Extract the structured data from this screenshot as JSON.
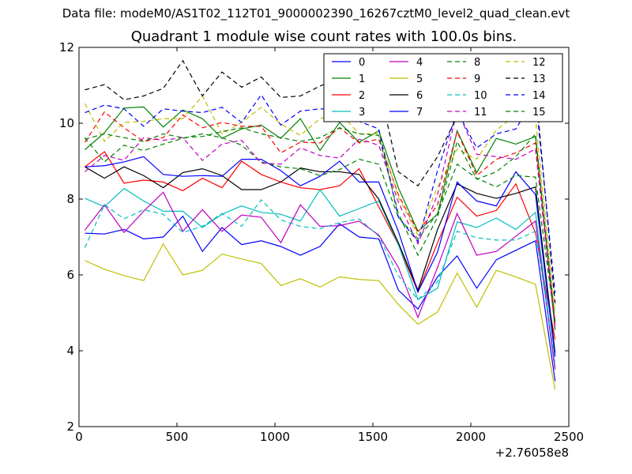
{
  "suptitle": "Data file: modeM0/AS1T02_112T01_9000002390_16267cztM0_level2_quad_clean.evt",
  "chart_data": {
    "type": "line",
    "title": "Quadrant 1 module wise count rates with 100.0s bins.",
    "xlabel": "",
    "ylabel": "",
    "x_offset_label": "+2.76058e8",
    "xlim": [
      0,
      2500
    ],
    "ylim": [
      2,
      12
    ],
    "xticks": [
      0,
      500,
      1000,
      1500,
      2000,
      2500
    ],
    "yticks": [
      2,
      4,
      6,
      8,
      10,
      12
    ],
    "grid": false,
    "legend_position": "upper-right",
    "legend_columns": 4,
    "x": [
      30,
      130,
      230,
      330,
      430,
      530,
      630,
      730,
      830,
      930,
      1030,
      1130,
      1230,
      1330,
      1430,
      1530,
      1630,
      1730,
      1830,
      1930,
      2030,
      2130,
      2230,
      2330,
      2430
    ],
    "series": [
      {
        "name": "0",
        "color": "#0000ff",
        "dash": "solid",
        "values": [
          7.1,
          7.08,
          7.2,
          6.95,
          7.0,
          7.55,
          6.62,
          7.25,
          6.8,
          6.9,
          6.75,
          6.52,
          6.75,
          7.35,
          7.0,
          6.95,
          5.6,
          5.1,
          5.95,
          6.5,
          5.65,
          6.4,
          6.65,
          6.9,
          3.2
        ]
      },
      {
        "name": "1",
        "color": "#008000",
        "dash": "solid",
        "values": [
          9.3,
          9.75,
          10.4,
          10.43,
          9.9,
          10.35,
          10.12,
          9.6,
          9.85,
          9.95,
          9.6,
          10.12,
          9.28,
          10.02,
          9.5,
          9.8,
          8.3,
          7.15,
          7.6,
          9.8,
          8.7,
          9.6,
          9.45,
          9.65,
          4.55
        ]
      },
      {
        "name": "2",
        "color": "#ff0000",
        "dash": "solid",
        "values": [
          8.85,
          9.25,
          8.42,
          8.5,
          8.45,
          8.22,
          8.55,
          8.3,
          9.0,
          8.65,
          8.45,
          8.3,
          8.25,
          8.35,
          8.8,
          7.8,
          6.8,
          5.55,
          6.85,
          8.05,
          7.55,
          7.7,
          8.4,
          7.1,
          4.3
        ]
      },
      {
        "name": "3",
        "color": "#00bfbf",
        "dash": "solid",
        "values": [
          8.02,
          7.8,
          8.28,
          7.95,
          7.68,
          7.68,
          7.25,
          7.6,
          7.82,
          7.65,
          7.6,
          7.42,
          8.25,
          7.55,
          7.75,
          7.95,
          6.8,
          5.35,
          5.65,
          7.4,
          7.25,
          7.5,
          7.2,
          7.65,
          3.55
        ]
      },
      {
        "name": "4",
        "color": "#bf00bf",
        "dash": "solid",
        "values": [
          7.18,
          7.85,
          7.12,
          7.68,
          8.18,
          7.15,
          7.72,
          7.15,
          7.58,
          7.52,
          6.85,
          7.85,
          7.28,
          7.3,
          7.42,
          7.05,
          6.2,
          4.88,
          6.2,
          7.62,
          6.52,
          6.62,
          7.02,
          7.42,
          3.5
        ]
      },
      {
        "name": "5",
        "color": "#bfbf00",
        "dash": "solid",
        "values": [
          6.38,
          6.15,
          5.98,
          5.85,
          6.82,
          6.0,
          6.12,
          6.55,
          6.42,
          6.3,
          5.72,
          5.9,
          5.68,
          5.95,
          5.88,
          5.85,
          5.22,
          4.7,
          5.02,
          6.05,
          5.15,
          6.12,
          5.95,
          5.75,
          2.98
        ]
      },
      {
        "name": "6",
        "color": "#000000",
        "dash": "solid",
        "values": [
          8.85,
          8.55,
          8.85,
          8.62,
          8.3,
          8.7,
          8.8,
          8.62,
          8.25,
          8.25,
          8.45,
          8.82,
          8.72,
          8.72,
          8.65,
          8.0,
          6.85,
          5.6,
          7.2,
          8.4,
          8.15,
          8.02,
          8.15,
          8.32,
          3.95
        ]
      },
      {
        "name": "7",
        "color": "#0000ff",
        "dash": "solid",
        "values": [
          8.85,
          8.88,
          8.98,
          9.12,
          8.65,
          8.6,
          8.62,
          8.6,
          9.05,
          9.05,
          8.75,
          8.35,
          8.6,
          9.0,
          8.45,
          8.45,
          7.15,
          5.55,
          6.6,
          8.45,
          7.95,
          7.82,
          8.72,
          8.12,
          3.85
        ]
      },
      {
        "name": "8",
        "color": "#008000",
        "dash": "dash",
        "values": [
          9.62,
          8.98,
          9.42,
          9.28,
          9.45,
          9.6,
          9.72,
          9.62,
          9.42,
          8.98,
          8.85,
          8.8,
          8.62,
          8.78,
          9.05,
          8.92,
          7.52,
          6.95,
          7.62,
          8.92,
          8.55,
          8.32,
          8.62,
          8.58,
          4.72
        ]
      },
      {
        "name": "9",
        "color": "#ff0000",
        "dash": "dash",
        "values": [
          9.5,
          10.3,
          9.88,
          9.52,
          9.62,
          10.22,
          9.88,
          10.02,
          9.92,
          9.92,
          9.22,
          9.5,
          9.48,
          9.88,
          9.48,
          9.58,
          8.12,
          7.12,
          7.85,
          9.78,
          8.62,
          9.05,
          9.22,
          9.48,
          4.72
        ]
      },
      {
        "name": "10",
        "color": "#00bfbf",
        "dash": "dash",
        "values": [
          6.72,
          7.85,
          7.48,
          7.72,
          7.6,
          7.12,
          7.28,
          7.62,
          7.28,
          7.98,
          7.45,
          7.28,
          7.22,
          7.38,
          7.48,
          7.02,
          5.98,
          5.35,
          5.82,
          7.15,
          6.98,
          6.92,
          6.92,
          7.15,
          3.72
        ]
      },
      {
        "name": "11",
        "color": "#bf00bf",
        "dash": "dash",
        "values": [
          8.72,
          9.15,
          9.02,
          9.62,
          9.55,
          9.62,
          9.02,
          9.45,
          9.55,
          8.95,
          8.92,
          9.35,
          9.15,
          9.08,
          9.58,
          9.42,
          7.92,
          6.82,
          8.12,
          10.35,
          9.18,
          9.12,
          9.05,
          9.32,
          4.62
        ]
      },
      {
        "name": "12",
        "color": "#bfbf00",
        "dash": "dash",
        "values": [
          10.52,
          9.52,
          10.02,
          10.05,
          10.12,
          10.12,
          10.72,
          9.72,
          10.02,
          10.42,
          9.98,
          9.68,
          10.12,
          10.28,
          9.72,
          9.72,
          8.05,
          7.05,
          8.32,
          9.32,
          9.05,
          9.82,
          10.22,
          10.12,
          5.02
        ]
      },
      {
        "name": "13",
        "color": "#000000",
        "dash": "dash",
        "values": [
          10.88,
          11.02,
          10.62,
          10.72,
          10.92,
          11.65,
          10.72,
          11.35,
          10.95,
          11.22,
          10.68,
          10.72,
          10.98,
          11.18,
          11.28,
          10.98,
          8.72,
          8.35,
          9.12,
          10.18,
          10.52,
          10.58,
          10.45,
          10.98,
          5.25
        ]
      },
      {
        "name": "14",
        "color": "#0000ff",
        "dash": "dash",
        "values": [
          10.28,
          10.48,
          10.38,
          9.92,
          10.38,
          10.32,
          10.28,
          10.42,
          10.02,
          10.75,
          9.95,
          10.32,
          10.38,
          10.35,
          10.05,
          9.85,
          7.52,
          6.88,
          8.75,
          10.32,
          9.35,
          9.72,
          9.85,
          10.72,
          5.52
        ]
      },
      {
        "name": "15",
        "color": "#008000",
        "dash": "dash",
        "values": [
          9.58,
          9.72,
          9.62,
          9.52,
          9.72,
          9.62,
          9.65,
          9.78,
          9.88,
          9.72,
          9.62,
          9.52,
          9.62,
          9.88,
          9.72,
          9.68,
          7.62,
          6.52,
          7.52,
          9.52,
          8.52,
          8.72,
          9.12,
          9.72,
          4.78
        ]
      }
    ]
  }
}
